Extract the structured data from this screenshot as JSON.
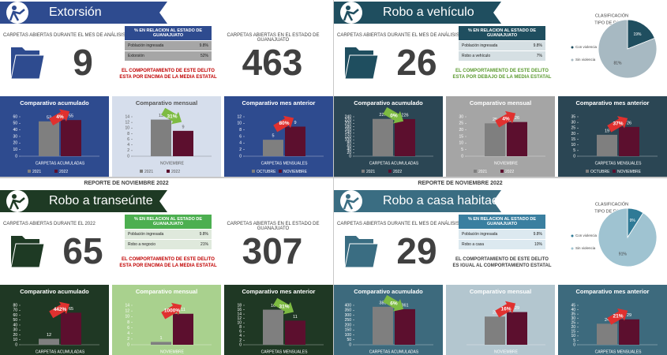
{
  "panels": [
    {
      "title": "Extorsión",
      "header_color": "#2e4b8f",
      "count_label": "CARPETAS ABIERTAS DURANTE EL MES DE ANÁLISIS",
      "count": 9,
      "table": {
        "header": "% EN RELACION AL ESTADO DE GUANAJUATO",
        "header_color": "#2e4b8f",
        "row_color": "#a6a6a6",
        "rows": [
          [
            "Población ingresada",
            "9.8%"
          ],
          [
            "Extorsión",
            "52%"
          ]
        ]
      },
      "comment": "EL COMPORTAMIENTO DE ESTE DELITO ESTA POR ENCIMA DE LA MEDIA ESTATAL",
      "comment_color": "#c00000",
      "state": {
        "label": "CARPETAS ABIERTAS EN EL ESTADO DE GUANAJUATO",
        "value": 463
      },
      "charts": [
        {
          "type": "bar",
          "title": "Comparativo acumulado",
          "background": "#2e4b8f",
          "text_color": "#ffffff",
          "categories": [
            "CARPETAS ACUMULADAS"
          ],
          "series": [
            {
              "name": "2021",
              "color": "#7f7f7f",
              "values": [
                53
              ]
            },
            {
              "name": "2022",
              "color": "#5c0f2e",
              "values": [
                55
              ]
            }
          ],
          "ylim": [
            0,
            60
          ],
          "yticks": [
            0,
            10,
            20,
            30,
            40,
            50,
            60
          ],
          "change": "4%",
          "change_direction": "up"
        },
        {
          "type": "bar",
          "title": "Comparativo mensual",
          "background": "#d6deec",
          "text_color": "#555555",
          "categories": [
            "NOVIEMBRE"
          ],
          "series": [
            {
              "name": "2021",
              "color": "#7f7f7f",
              "values": [
                13
              ]
            },
            {
              "name": "2022",
              "color": "#5c0f2e",
              "values": [
                9
              ]
            }
          ],
          "ylim": [
            0,
            14
          ],
          "yticks": [
            0,
            2,
            4,
            6,
            8,
            10,
            12,
            14
          ],
          "change": "31%",
          "change_direction": "down"
        },
        {
          "type": "bar",
          "title": "Comparativo mes anterior",
          "background": "#2e4b8f",
          "text_color": "#ffffff",
          "categories": [
            "CARPETAS MENSUALES"
          ],
          "series": [
            {
              "name": "OCTUBRE",
              "color": "#7f7f7f",
              "values": [
                5
              ]
            },
            {
              "name": "NOVIEMBRE",
              "color": "#5c0f2e",
              "values": [
                9
              ]
            }
          ],
          "ylim": [
            0,
            12
          ],
          "yticks": [
            0,
            2,
            4,
            6,
            8,
            10,
            12
          ],
          "change": "80%",
          "change_direction": "up"
        }
      ]
    },
    {
      "title": "Robo a vehículo",
      "header_color": "#1f4e5f",
      "count_label": "CARPETAS ABIERTAS DURANTE EL MES DE ANÁLISIS",
      "count": 26,
      "table": {
        "header": "% EN RELACION AL ESTADO DE GUANAJUATO",
        "header_color": "#1f4e5f",
        "row_color": "#d5dfe3",
        "rows": [
          [
            "Población ingresada",
            "9.8%"
          ],
          [
            "Robo a vehículo",
            "7%"
          ]
        ]
      },
      "comment": "EL COMPORTAMIENTO DE ESTE DELITO ESTA POR DEBAJO DE LA MEDIA ESTATAL",
      "comment_color": "#5b9a2f",
      "pie": {
        "title": "CLASIFICACIÓN",
        "subtitle": "TIPO DE ROBOS",
        "categories": [
          "Con violencia",
          "Sin violencia"
        ],
        "values": [
          19,
          81
        ],
        "value_labels": [
          "19%",
          "81%"
        ],
        "colors": [
          "#1f4e5f",
          "#a7b9c2"
        ]
      },
      "charts": [
        {
          "type": "bar",
          "title": "Comparativo acumulado",
          "background": "#2b4654",
          "text_color": "#ffffff",
          "categories": [
            "CARPETAS ACUMULADAS"
          ],
          "series": [
            {
              "name": "2021",
              "color": "#7f7f7f",
              "values": [
                227
              ]
            },
            {
              "name": "2022",
              "color": "#5c0f2e",
              "values": [
                226
              ]
            }
          ],
          "ylim": [
            0,
            240
          ],
          "yticks": [
            0,
            20,
            40,
            60,
            80,
            100,
            120,
            140,
            160,
            180,
            200,
            220,
            240
          ],
          "change": "0%",
          "change_direction": "down"
        },
        {
          "type": "bar",
          "title": "Comparativo mensual",
          "background": "#a5a5a5",
          "text_color": "#ffffff",
          "categories": [
            "NOVIEMBRE"
          ],
          "series": [
            {
              "name": "2021",
              "color": "#7f7f7f",
              "values": [
                25
              ]
            },
            {
              "name": "2022",
              "color": "#5c0f2e",
              "values": [
                26
              ]
            }
          ],
          "ylim": [
            0,
            30
          ],
          "yticks": [
            0,
            5,
            10,
            15,
            20,
            25,
            30
          ],
          "change": "4%",
          "change_direction": "up"
        },
        {
          "type": "bar",
          "title": "Comparativo mes anterior",
          "background": "#2b4654",
          "text_color": "#ffffff",
          "categories": [
            "CARPETAS MENSUALES"
          ],
          "series": [
            {
              "name": "OCTUBRE",
              "color": "#7f7f7f",
              "values": [
                19
              ]
            },
            {
              "name": "NOVIEMBRE",
              "color": "#5c0f2e",
              "values": [
                26
              ]
            }
          ],
          "ylim": [
            0,
            35
          ],
          "yticks": [
            0,
            5,
            10,
            15,
            20,
            25,
            30,
            35
          ],
          "change": "37%",
          "change_direction": "up"
        }
      ]
    },
    {
      "report": "REPORTE DE NOVIEMBRE 2022",
      "title": "Robo a transeúnte",
      "header_color": "#1e3a24",
      "count_label": "CARPETAS ABIERTAS DURANTE EL 2022",
      "count": 65,
      "table": {
        "header": "% EN RELACION AL ESTADO DE GUANAJUATO",
        "header_color": "#4caf50",
        "row_color": "#dfe9dc",
        "rows": [
          [
            "Población ingresada",
            "9.8%"
          ],
          [
            "Robo a negocio",
            "21%"
          ]
        ]
      },
      "comment": "EL COMPORTAMIENTO DE ESTE DELITO ESTA POR ENCIMA DE LA MEDIA ESTATAL",
      "comment_color": "#c00000",
      "state": {
        "label": "CARPETAS ABIERTAS EN EL ESTADO DE GUANAJUATO",
        "value": 307
      },
      "charts": [
        {
          "type": "bar",
          "title": "Comparativo acumulado",
          "background": "#1f3824",
          "text_color": "#ffffff",
          "categories": [
            "CARPETAS ACUMULADAS"
          ],
          "series": [
            {
              "color": "#7f7f7f",
              "values": [
                12
              ]
            },
            {
              "color": "#5c0f2e",
              "values": [
                65
              ]
            }
          ],
          "ylim": [
            0,
            80
          ],
          "yticks": [
            0,
            10,
            20,
            30,
            40,
            50,
            60,
            70,
            80
          ],
          "change": "442%",
          "change_direction": "up"
        },
        {
          "type": "bar",
          "title": "Comparativo mensual",
          "background": "#a9d18e",
          "text_color": "#ffffff",
          "categories": [
            "NOVIEMBRE"
          ],
          "series": [
            {
              "color": "#7f7f7f",
              "values": [
                1
              ]
            },
            {
              "color": "#5c0f2e",
              "values": [
                11
              ]
            }
          ],
          "ylim": [
            0,
            14
          ],
          "yticks": [
            0,
            2,
            4,
            6,
            8,
            10,
            12,
            14
          ],
          "change": "1000%",
          "change_direction": "up"
        },
        {
          "type": "bar",
          "title": "Comparativo mes anterior",
          "background": "#1f3824",
          "text_color": "#ffffff",
          "categories": [
            "CARPETAS MENSUALES"
          ],
          "series": [
            {
              "color": "#7f7f7f",
              "values": [
                16
              ]
            },
            {
              "color": "#5c0f2e",
              "values": [
                11
              ]
            }
          ],
          "ylim": [
            0,
            18
          ],
          "yticks": [
            0,
            2,
            4,
            6,
            8,
            10,
            12,
            14,
            16,
            18
          ],
          "change": "31%",
          "change_direction": "down"
        }
      ]
    },
    {
      "report": "REPORTE DE NOVIEMBRE 2022",
      "title": "Robo a casa habitación",
      "header_color": "#3a6d82",
      "count_label": "CARPETAS ABIERTAS DURANTE EL MES DE ANÁLISIS",
      "count": 29,
      "table": {
        "header": "% EN RELACION AL ESTADO DE GUANAJUATO",
        "header_color": "#3a7fa0",
        "row_color": "#dce9f0",
        "rows": [
          [
            "Población ingresada",
            "9.8%"
          ],
          [
            "Robo a casa",
            "10%"
          ]
        ]
      },
      "comment": "EL COMPORTAMIENTO DE ESTE DELITO ES IGUAL AL COMPORTAMIENTO ESTATAL",
      "comment_color": "#404040",
      "pie": {
        "title": "CLASIFICACIÓN",
        "subtitle": "TIPO DE ROBOS",
        "categories": [
          "Con violencia",
          "Sin violencia"
        ],
        "values": [
          9,
          91
        ],
        "value_labels": [
          "9%",
          "91%"
        ],
        "colors": [
          "#2f7a96",
          "#9fc3d1"
        ]
      },
      "charts": [
        {
          "type": "bar",
          "title": "Comparativo acumulado",
          "background": "#3d6a7d",
          "text_color": "#ffffff",
          "categories": [
            "CARPETAS ACUMULADAS"
          ],
          "series": [
            {
              "color": "#7f7f7f",
              "values": [
                385
              ]
            },
            {
              "color": "#5c0f2e",
              "values": [
                361
              ]
            }
          ],
          "ylim": [
            0,
            400
          ],
          "yticks": [
            0,
            50,
            100,
            150,
            200,
            250,
            300,
            350,
            400
          ],
          "change": "6%",
          "change_direction": "down"
        },
        {
          "type": "bar",
          "title": "Comparativo mensual",
          "background": "#b3c6cf",
          "text_color": "#ffffff",
          "categories": [
            "NOVIEMBRE"
          ],
          "series": [
            {
              "color": "#7f7f7f",
              "values": [
                25
              ]
            },
            {
              "color": "#5c0f2e",
              "values": [
                29
              ]
            }
          ],
          "ylim": [
            0,
            35
          ],
          "change": "16%",
          "change_direction": "up"
        },
        {
          "type": "bar",
          "title": "Comparativo mes anterior",
          "background": "#3d6a7d",
          "text_color": "#ffffff",
          "categories": [
            "CARPETAS MENSUALES"
          ],
          "series": [
            {
              "color": "#7f7f7f",
              "values": [
                24
              ]
            },
            {
              "color": "#5c0f2e",
              "values": [
                29
              ]
            }
          ],
          "ylim": [
            0,
            45
          ],
          "yticks": [
            0,
            5,
            10,
            15,
            20,
            25,
            30,
            35,
            40,
            45
          ],
          "change": "21%",
          "change_direction": "up"
        }
      ]
    }
  ]
}
